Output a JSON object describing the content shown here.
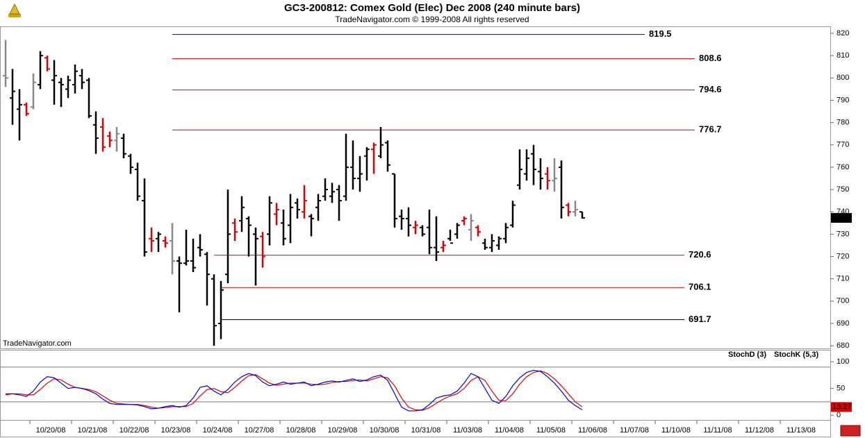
{
  "chart_data": [
    {
      "type": "ohlc",
      "title": "GC3-200812:  Comex Gold (Elec) Dec 2008  (240 minute bars)",
      "subtitle": "TradeNavigator.com © 1999-2008 All rights reserved",
      "watermark": "TradeNavigator.com",
      "ylim": [
        678.8,
        823.1
      ],
      "yticks": [
        680,
        690,
        700,
        710,
        720,
        730,
        740,
        750,
        760,
        770,
        780,
        790,
        800,
        810,
        820
      ],
      "dates": [
        "10/20/08",
        "10/21/08",
        "10/22/08",
        "10/23/08",
        "10/24/08",
        "10/27/08",
        "10/28/08",
        "10/29/08",
        "10/30/08",
        "10/31/08",
        "11/03/08",
        "11/04/08",
        "11/05/08",
        "11/06/08",
        "11/07/08",
        "11/10/08",
        "11/11/08",
        "11/12/08",
        "11/13/08"
      ],
      "last": 737.3,
      "levels": [
        {
          "value": 819.5,
          "color": "#0000cc"
        },
        {
          "value": 808.6,
          "color": "#dd0000"
        },
        {
          "value": 794.6,
          "color": "#dd0000"
        },
        {
          "value": 776.7,
          "color": "#dd0000"
        },
        {
          "value": 720.6,
          "color": "#dd0000"
        },
        {
          "value": 706.1,
          "color": "#dd0000"
        },
        {
          "value": 691.7,
          "color": "#000000"
        }
      ],
      "open": [
        801,
        791,
        786,
        788,
        787,
        797,
        809,
        799,
        798,
        795,
        797,
        801,
        799,
        779,
        778,
        774,
        772,
        773,
        765,
        759,
        745,
        728,
        728,
        727,
        727,
        718,
        717,
        718,
        724,
        721,
        710,
        690,
        712,
        735,
        736,
        737,
        730,
        729,
        730,
        739,
        735,
        734,
        744,
        740,
        738,
        742,
        747,
        747,
        750,
        747,
        760,
        755,
        765,
        768,
        765,
        771,
        757,
        738,
        737,
        733,
        733,
        733,
        724,
        724,
        728,
        730,
        736,
        732,
        733,
        726,
        724,
        725,
        728,
        734,
        752,
        757,
        766,
        758,
        757,
        754,
        760,
        743,
        740,
        740
      ],
      "high": [
        817,
        804,
        795,
        789,
        802,
        812,
        810,
        808,
        800,
        801,
        806,
        804,
        800,
        785,
        782,
        776,
        778,
        775,
        766,
        762,
        755,
        733,
        731,
        729,
        735,
        720,
        732,
        728,
        730,
        722,
        712,
        709,
        750,
        737,
        747,
        738,
        733,
        731,
        747,
        744,
        741,
        748,
        746,
        752,
        739,
        748,
        755,
        753,
        752,
        775,
        772,
        765,
        769,
        771,
        778,
        772,
        757,
        741,
        742,
        736,
        734,
        741,
        738,
        727,
        732,
        735,
        738,
        739,
        734,
        728,
        730,
        729,
        735,
        745,
        768,
        768,
        770,
        764,
        760,
        764,
        763,
        744,
        745,
        740
      ],
      "low": [
        796,
        779,
        772,
        783,
        786,
        795,
        803,
        788,
        787,
        791,
        793,
        795,
        782,
        766,
        767,
        769,
        767,
        764,
        757,
        745,
        720,
        722,
        722,
        724,
        712,
        695,
        716,
        713,
        720,
        698,
        680,
        683,
        708,
        727,
        731,
        720,
        707,
        715,
        725,
        734,
        725,
        726,
        737,
        737,
        729,
        736,
        745,
        744,
        736,
        745,
        750,
        749,
        754,
        757,
        764,
        758,
        733,
        732,
        729,
        730,
        729,
        721,
        718,
        722,
        727,
        728,
        734,
        727,
        729,
        723,
        722,
        723,
        726,
        733,
        750,
        754,
        752,
        750,
        750,
        749,
        737,
        738,
        738,
        737
      ],
      "close": [
        800,
        794,
        788,
        784,
        798,
        810,
        804,
        801,
        797,
        799,
        803,
        798,
        783,
        773,
        769,
        772,
        775,
        766,
        760,
        747,
        722,
        727,
        730,
        726,
        718,
        717,
        718,
        715,
        723,
        712,
        689,
        705,
        730,
        731,
        742,
        734,
        728,
        720,
        744,
        741,
        728,
        742,
        741,
        745,
        737,
        745,
        750,
        749,
        745,
        760,
        755,
        757,
        768,
        770,
        770,
        761,
        737,
        737,
        734,
        734,
        730,
        724,
        722,
        725,
        726,
        734,
        737,
        736,
        731,
        724,
        727,
        728,
        733,
        743,
        759,
        764,
        759,
        755,
        754,
        755,
        742,
        740,
        741,
        737.3
      ],
      "colors": [
        "#888888",
        "#000000",
        "#000000",
        "#dd0000",
        "#888888",
        "#000000",
        "#dd0000",
        "#000000",
        "#000000",
        "#000000",
        "#000000",
        "#000000",
        "#000000",
        "#000000",
        "#dd0000",
        "#dd0000",
        "#888888",
        "#000000",
        "#000000",
        "#000000",
        "#000000",
        "#dd0000",
        "#000000",
        "#dd0000",
        "#888888",
        "#000000",
        "#000000",
        "#000000",
        "#000000",
        "#000000",
        "#000000",
        "#000000",
        "#000000",
        "#dd0000",
        "#000000",
        "#000000",
        "#000000",
        "#dd0000",
        "#000000",
        "#dd0000",
        "#000000",
        "#000000",
        "#000000",
        "#dd0000",
        "#000000",
        "#000000",
        "#000000",
        "#000000",
        "#000000",
        "#000000",
        "#000000",
        "#000000",
        "#000000",
        "#dd0000",
        "#000000",
        "#000000",
        "#000000",
        "#000000",
        "#000000",
        "#dd0000",
        "#000000",
        "#000000",
        "#000000",
        "#dd0000",
        "#000000",
        "#000000",
        "#dd0000",
        "#888888",
        "#dd0000",
        "#000000",
        "#000000",
        "#000000",
        "#000000",
        "#000000",
        "#000000",
        "#000000",
        "#000000",
        "#000000",
        "#dd0000",
        "#888888",
        "#000000",
        "#dd0000",
        "#888888",
        "#000000"
      ]
    },
    {
      "type": "line",
      "ylim": [
        -9,
        121
      ],
      "yticks": [
        0,
        50,
        100
      ],
      "levels": [
        90,
        25
      ],
      "last": 15.27,
      "series": [
        {
          "name": "StochD (3)",
          "color": "#dd0000",
          "values": [
            38,
            40,
            40,
            38,
            38,
            48,
            60,
            68,
            66,
            58,
            52,
            50,
            48,
            44,
            36,
            28,
            22,
            21,
            20,
            20,
            18,
            15,
            13,
            14,
            16,
            16,
            16,
            22,
            36,
            48,
            50,
            44,
            42,
            52,
            64,
            74,
            76,
            68,
            60,
            56,
            58,
            60,
            60,
            60,
            58,
            57,
            58,
            61,
            63,
            63,
            65,
            66,
            64,
            68,
            72,
            70,
            55,
            32,
            15,
            10,
            9,
            14,
            22,
            30,
            36,
            40,
            50,
            65,
            72,
            65,
            45,
            28,
            27,
            40,
            58,
            72,
            80,
            83,
            78,
            68,
            55,
            40,
            25,
            15.27
          ]
        },
        {
          "name": "StochK (5,3)",
          "color": "#0000dd",
          "values": [
            40,
            40,
            38,
            35,
            45,
            62,
            72,
            70,
            60,
            50,
            52,
            50,
            46,
            40,
            30,
            22,
            20,
            20,
            20,
            19,
            16,
            12,
            13,
            16,
            18,
            15,
            18,
            32,
            52,
            55,
            45,
            38,
            48,
            62,
            72,
            78,
            74,
            62,
            55,
            58,
            62,
            58,
            60,
            62,
            55,
            58,
            62,
            64,
            62,
            65,
            68,
            63,
            66,
            72,
            75,
            65,
            40,
            15,
            8,
            8,
            10,
            20,
            32,
            36,
            38,
            45,
            60,
            78,
            72,
            50,
            28,
            22,
            35,
            55,
            70,
            80,
            84,
            82,
            72,
            60,
            45,
            28,
            18,
            10
          ]
        }
      ]
    }
  ]
}
